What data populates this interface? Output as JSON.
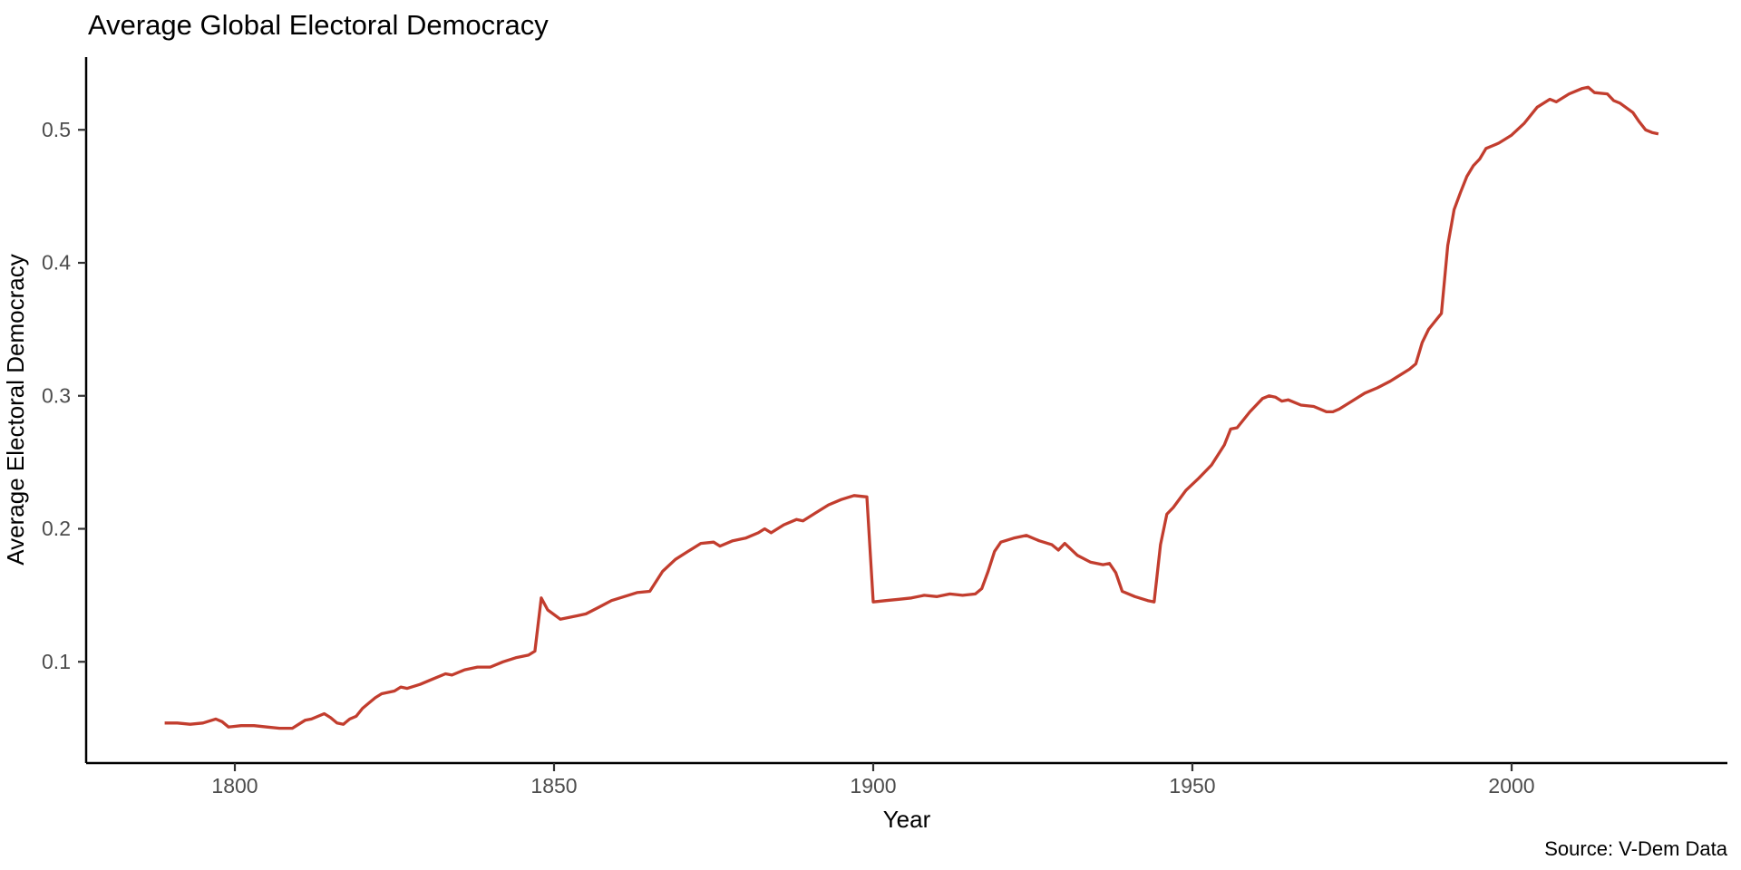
{
  "page": {
    "background": "#ffffff"
  },
  "chart_data": {
    "type": "line",
    "title": "Average Global Electoral Democracy",
    "xlabel": "Year",
    "ylabel": "Average Electoral Democracy",
    "source_note": "Source: V-Dem Data",
    "line_color": "#C23D2E",
    "axis_text_color": "#4D4D4D",
    "axis_line_color": "#000000",
    "grid": false,
    "legend": "none",
    "x_ticks": [
      1800,
      1850,
      1900,
      1950,
      2000
    ],
    "y_ticks": [
      0.1,
      0.2,
      0.3,
      0.4,
      0.5
    ],
    "xlim": [
      1789,
      2023
    ],
    "ylim": [
      0.03,
      0.56
    ],
    "series": [
      {
        "name": "Average Electoral Democracy",
        "points": [
          [
            1789,
            0.054
          ],
          [
            1791,
            0.054
          ],
          [
            1793,
            0.053
          ],
          [
            1795,
            0.054
          ],
          [
            1797,
            0.057
          ],
          [
            1798,
            0.055
          ],
          [
            1799,
            0.051
          ],
          [
            1801,
            0.052
          ],
          [
            1803,
            0.052
          ],
          [
            1805,
            0.051
          ],
          [
            1807,
            0.05
          ],
          [
            1809,
            0.05
          ],
          [
            1810,
            0.053
          ],
          [
            1811,
            0.056
          ],
          [
            1812,
            0.057
          ],
          [
            1814,
            0.061
          ],
          [
            1815,
            0.058
          ],
          [
            1816,
            0.054
          ],
          [
            1817,
            0.053
          ],
          [
            1818,
            0.057
          ],
          [
            1819,
            0.059
          ],
          [
            1820,
            0.065
          ],
          [
            1821,
            0.069
          ],
          [
            1822,
            0.073
          ],
          [
            1823,
            0.076
          ],
          [
            1825,
            0.078
          ],
          [
            1826,
            0.081
          ],
          [
            1827,
            0.08
          ],
          [
            1829,
            0.083
          ],
          [
            1831,
            0.087
          ],
          [
            1833,
            0.091
          ],
          [
            1834,
            0.09
          ],
          [
            1836,
            0.094
          ],
          [
            1838,
            0.096
          ],
          [
            1840,
            0.096
          ],
          [
            1842,
            0.1
          ],
          [
            1844,
            0.103
          ],
          [
            1846,
            0.105
          ],
          [
            1847,
            0.108
          ],
          [
            1848,
            0.148
          ],
          [
            1849,
            0.139
          ],
          [
            1851,
            0.132
          ],
          [
            1853,
            0.134
          ],
          [
            1855,
            0.136
          ],
          [
            1857,
            0.141
          ],
          [
            1859,
            0.146
          ],
          [
            1861,
            0.149
          ],
          [
            1863,
            0.152
          ],
          [
            1865,
            0.153
          ],
          [
            1867,
            0.168
          ],
          [
            1869,
            0.177
          ],
          [
            1871,
            0.183
          ],
          [
            1873,
            0.189
          ],
          [
            1875,
            0.19
          ],
          [
            1876,
            0.187
          ],
          [
            1878,
            0.191
          ],
          [
            1880,
            0.193
          ],
          [
            1882,
            0.197
          ],
          [
            1883,
            0.2
          ],
          [
            1884,
            0.197
          ],
          [
            1886,
            0.203
          ],
          [
            1888,
            0.207
          ],
          [
            1889,
            0.206
          ],
          [
            1891,
            0.212
          ],
          [
            1893,
            0.218
          ],
          [
            1895,
            0.222
          ],
          [
            1897,
            0.225
          ],
          [
            1899,
            0.224
          ],
          [
            1900,
            0.145
          ],
          [
            1902,
            0.146
          ],
          [
            1904,
            0.147
          ],
          [
            1906,
            0.148
          ],
          [
            1908,
            0.15
          ],
          [
            1910,
            0.149
          ],
          [
            1912,
            0.151
          ],
          [
            1914,
            0.15
          ],
          [
            1916,
            0.151
          ],
          [
            1917,
            0.155
          ],
          [
            1918,
            0.168
          ],
          [
            1919,
            0.183
          ],
          [
            1920,
            0.19
          ],
          [
            1922,
            0.193
          ],
          [
            1924,
            0.195
          ],
          [
            1926,
            0.191
          ],
          [
            1928,
            0.188
          ],
          [
            1929,
            0.184
          ],
          [
            1930,
            0.189
          ],
          [
            1932,
            0.18
          ],
          [
            1934,
            0.175
          ],
          [
            1936,
            0.173
          ],
          [
            1937,
            0.174
          ],
          [
            1938,
            0.167
          ],
          [
            1939,
            0.153
          ],
          [
            1941,
            0.149
          ],
          [
            1943,
            0.146
          ],
          [
            1944,
            0.145
          ],
          [
            1945,
            0.188
          ],
          [
            1946,
            0.211
          ],
          [
            1947,
            0.216
          ],
          [
            1949,
            0.229
          ],
          [
            1951,
            0.238
          ],
          [
            1953,
            0.248
          ],
          [
            1955,
            0.263
          ],
          [
            1956,
            0.275
          ],
          [
            1957,
            0.276
          ],
          [
            1959,
            0.288
          ],
          [
            1961,
            0.298
          ],
          [
            1962,
            0.3
          ],
          [
            1963,
            0.299
          ],
          [
            1964,
            0.296
          ],
          [
            1965,
            0.297
          ],
          [
            1967,
            0.293
          ],
          [
            1969,
            0.292
          ],
          [
            1971,
            0.288
          ],
          [
            1972,
            0.288
          ],
          [
            1973,
            0.29
          ],
          [
            1975,
            0.296
          ],
          [
            1977,
            0.302
          ],
          [
            1979,
            0.306
          ],
          [
            1981,
            0.311
          ],
          [
            1982,
            0.314
          ],
          [
            1984,
            0.32
          ],
          [
            1985,
            0.324
          ],
          [
            1986,
            0.34
          ],
          [
            1987,
            0.35
          ],
          [
            1988,
            0.356
          ],
          [
            1989,
            0.362
          ],
          [
            1990,
            0.413
          ],
          [
            1991,
            0.44
          ],
          [
            1992,
            0.453
          ],
          [
            1993,
            0.465
          ],
          [
            1994,
            0.473
          ],
          [
            1995,
            0.478
          ],
          [
            1996,
            0.486
          ],
          [
            1997,
            0.488
          ],
          [
            1998,
            0.49
          ],
          [
            1999,
            0.493
          ],
          [
            2000,
            0.496
          ],
          [
            2002,
            0.505
          ],
          [
            2004,
            0.517
          ],
          [
            2006,
            0.523
          ],
          [
            2007,
            0.521
          ],
          [
            2009,
            0.527
          ],
          [
            2011,
            0.531
          ],
          [
            2012,
            0.532
          ],
          [
            2013,
            0.528
          ],
          [
            2015,
            0.527
          ],
          [
            2016,
            0.522
          ],
          [
            2017,
            0.52
          ],
          [
            2019,
            0.513
          ],
          [
            2020,
            0.506
          ],
          [
            2021,
            0.5
          ],
          [
            2022,
            0.498
          ],
          [
            2023,
            0.497
          ]
        ]
      }
    ]
  }
}
